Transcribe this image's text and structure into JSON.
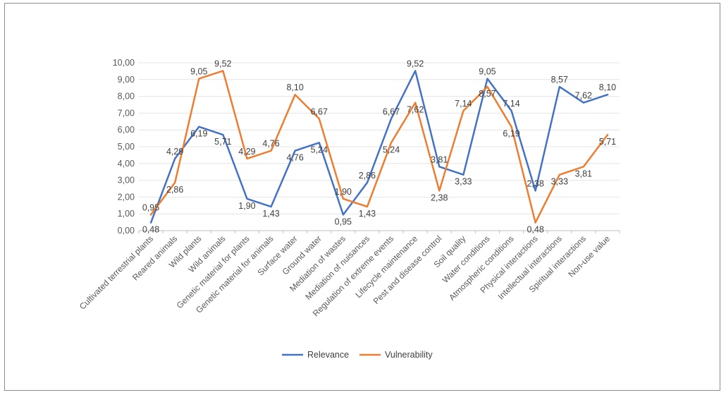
{
  "chart_data": {
    "type": "line",
    "title": "",
    "xlabel": "",
    "ylabel": "",
    "ylim": [
      0,
      10
    ],
    "ytick_step": 1,
    "ytick_labels": [
      "0,00",
      "1,00",
      "2,00",
      "3,00",
      "4,00",
      "5,00",
      "6,00",
      "7,00",
      "8,00",
      "9,00",
      "10,00"
    ],
    "grid": true,
    "legend": "bottom",
    "categories": [
      "Cultivated terrestrial plants",
      "Reared animals",
      "Wild plants",
      "Wild animals",
      "Genetic material for plants",
      "Genetic material for animals",
      "Surface water",
      "Ground water",
      "Mediation of wastes",
      "Mediation of nuisances",
      "Regulation of extreme events",
      "Lifecycle maintenance",
      "Pest and disease control",
      "Soil quality",
      "Water conditions",
      "Atmospheric conditions",
      "Physical interactions",
      "Intellectual interactions",
      "Spiritual interactions",
      "Non-use value"
    ],
    "series": [
      {
        "name": "Relevance",
        "color": "#4472C4",
        "values": [
          0.48,
          4.29,
          6.19,
          5.71,
          1.9,
          1.43,
          4.76,
          5.24,
          0.95,
          2.86,
          6.67,
          9.52,
          3.81,
          3.33,
          9.05,
          7.14,
          2.38,
          8.57,
          7.62,
          8.1
        ],
        "labels": [
          "0,48",
          "4,29",
          "6,19",
          "5,71",
          "1,90",
          "1,43",
          "4,76",
          "5,24",
          "0,95",
          "2,86",
          "6,67",
          "9,52",
          "3,81",
          "3,33",
          "9,05",
          "7,14",
          "2,38",
          "8,57",
          "7,62",
          "8,10"
        ]
      },
      {
        "name": "Vulnerability",
        "color": "#ED7D31",
        "values": [
          0.95,
          2.86,
          9.05,
          9.52,
          4.29,
          4.76,
          8.1,
          6.67,
          1.9,
          1.43,
          5.24,
          7.62,
          2.38,
          7.14,
          8.57,
          6.19,
          0.48,
          3.33,
          3.81,
          5.71
        ],
        "labels": [
          "0,95",
          "2,86",
          "9,05",
          "9,52",
          "4,29",
          "4,76",
          "8,10",
          "6,67",
          "1,90",
          "1,43",
          "5,24",
          "7,62",
          "2,38",
          "7,14",
          "8,57",
          "6,19",
          "0,48",
          "3,33",
          "3,81",
          "5,71"
        ]
      }
    ]
  }
}
